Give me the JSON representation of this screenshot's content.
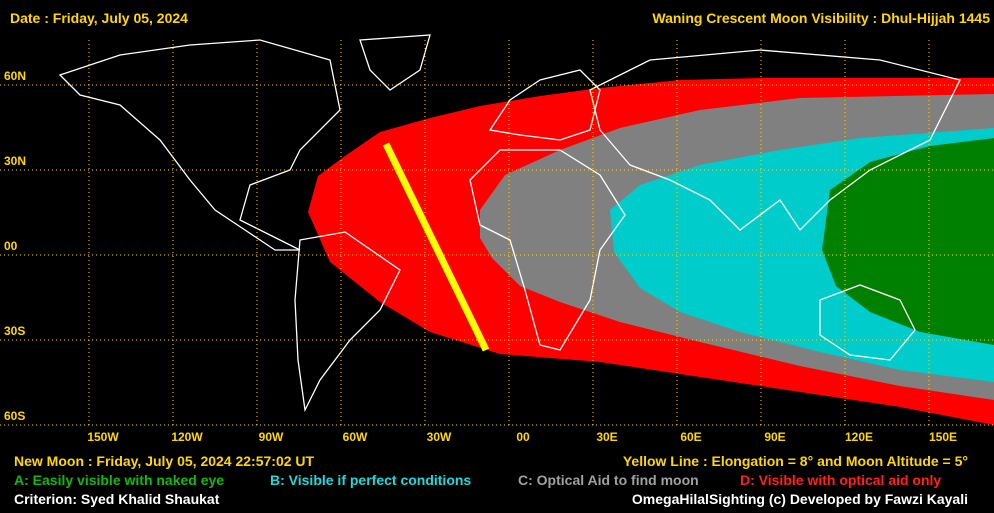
{
  "header": {
    "date": "Date : Friday, July 05, 2024",
    "title": "Waning Crescent Moon Visibility : Dhul-Hijjah 1445"
  },
  "map": {
    "latitude_labels": [
      "60N",
      "30N",
      "00",
      "30S",
      "60S"
    ],
    "longitude_labels": [
      "150W",
      "120W",
      "90W",
      "60W",
      "30W",
      "00",
      "30E",
      "60E",
      "90E",
      "120E",
      "150E"
    ]
  },
  "footer": {
    "new_moon": "New Moon : Friday, July 05, 2024  22:57:02  UT",
    "yellow_line": "Yellow Line : Elongation = 8° and Moon Altitude = 5°",
    "legend": [
      "A: Easily visible with naked eye",
      "B: Visible if perfect conditions",
      "C: Optical Aid to find moon",
      "D: Visible with optical aid only"
    ],
    "criterion": "Criterion: Syed Khalid Shaukat",
    "credit": "OmegaHilalSighting  (c)  Developed by Fawzi Kayali"
  }
}
